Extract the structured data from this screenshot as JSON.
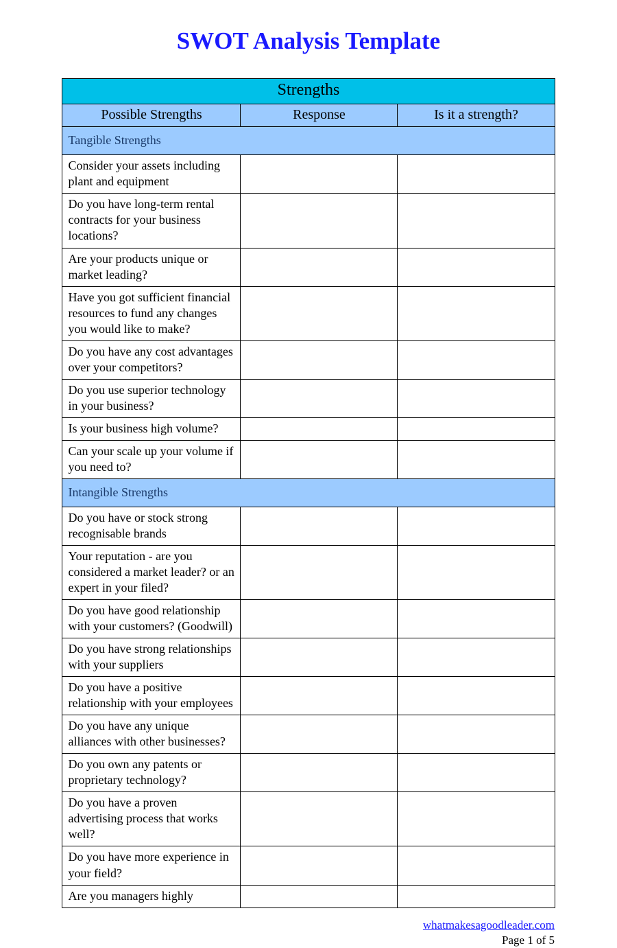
{
  "colors": {
    "title": "#1a1aff",
    "category_bg": "#00c0e8",
    "header_bg": "#9ccbff",
    "section_bg": "#9ccbff",
    "section_text": "#1a3a6a",
    "cell_text": "#000000",
    "border": "#000000",
    "link": "#1a1aff"
  },
  "title": "SWOT Analysis Template",
  "table": {
    "category": "Strengths",
    "columns": [
      "Possible Strengths",
      "Response",
      "Is it a strength?"
    ],
    "sections": [
      {
        "label": "Tangible Strengths",
        "rows": [
          "Consider your assets including plant and equipment",
          "Do you have long-term rental contracts for your business locations?",
          "Are your products unique or market leading?",
          "Have you got sufficient financial resources to fund any changes you would like to make?",
          "Do you have any cost advantages over your competitors?",
          "Do you use superior technology in your business?",
          "Is your business high volume?",
          "Can your scale up your volume if you need to?"
        ]
      },
      {
        "label": "Intangible Strengths",
        "rows": [
          "Do you have or stock strong recognisable brands",
          "Your reputation - are you considered a market leader? or an expert in your filed?",
          "Do you have good relationship with your customers? (Goodwill)",
          "Do you have strong relationships with your suppliers",
          "Do you have a positive relationship with your employees",
          "Do you have any unique alliances with other businesses?",
          "Do you own any patents or proprietary technology?",
          "Do you have a proven advertising process that works well?",
          "Do you have more experience in your field?",
          "Are you managers highly"
        ]
      }
    ]
  },
  "footer": {
    "link_text": "whatmakesagoodleader.com",
    "page_label": "Page 1 of 5"
  }
}
